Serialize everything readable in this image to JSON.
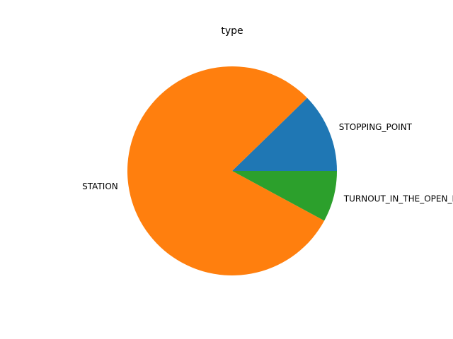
{
  "chart_data": {
    "type": "pie",
    "title": "type",
    "categories": [
      "STOPPING_POINT",
      "STATION",
      "TURNOUT_IN_THE_OPEN_LINE"
    ],
    "values": [
      12.3,
      79.8,
      7.9
    ],
    "colors": [
      "#1f77b4",
      "#ff7f0e",
      "#2ca02c"
    ],
    "start_angle_deg": 0,
    "direction": "counterclockwise",
    "legend": "none"
  }
}
